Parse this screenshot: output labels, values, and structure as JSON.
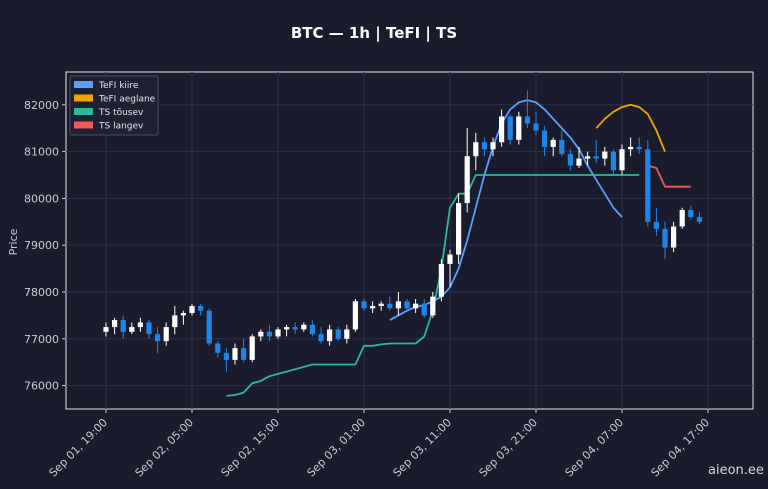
{
  "chart_data": {
    "type": "candlestick",
    "title": "BTC — 1h  |  TeFI  |  TS",
    "ylabel": "Price",
    "xlabel": "",
    "ylim": [
      75500,
      82700
    ],
    "yticks": [
      76000,
      77000,
      78000,
      79000,
      80000,
      81000,
      82000
    ],
    "xticks": [
      {
        "i": 0,
        "label": "Sep 01, 19:00"
      },
      {
        "i": 10,
        "label": "Sep 02, 05:00"
      },
      {
        "i": 20,
        "label": "Sep 02, 15:00"
      },
      {
        "i": 30,
        "label": "Sep 03, 01:00"
      },
      {
        "i": 40,
        "label": "Sep 03, 11:00"
      },
      {
        "i": 50,
        "label": "Sep 03, 21:00"
      },
      {
        "i": 60,
        "label": "Sep 04, 07:00"
      },
      {
        "i": 70,
        "label": "Sep 04, 17:00"
      }
    ],
    "grid": true,
    "legend_position": "top-left",
    "legend": [
      {
        "name": "TeFI kiire",
        "color": "#5aa0ff"
      },
      {
        "name": "TeFI aeglane",
        "color": "#f0a500"
      },
      {
        "name": "TS tõusev",
        "color": "#2eb89a"
      },
      {
        "name": "TS langev",
        "color": "#f05a5a"
      }
    ],
    "candles": [
      [
        77150,
        77350,
        77050,
        77250
      ],
      [
        77250,
        77450,
        77100,
        77400
      ],
      [
        77400,
        77500,
        77000,
        77150
      ],
      [
        77150,
        77350,
        77100,
        77250
      ],
      [
        77250,
        77450,
        77150,
        77350
      ],
      [
        77350,
        77400,
        77000,
        77100
      ],
      [
        77100,
        77250,
        76700,
        76950
      ],
      [
        76950,
        77350,
        76850,
        77250
      ],
      [
        77250,
        77700,
        77100,
        77500
      ],
      [
        77500,
        77600,
        77300,
        77550
      ],
      [
        77550,
        77750,
        77500,
        77700
      ],
      [
        77700,
        77750,
        77500,
        77600
      ],
      [
        77600,
        77650,
        76850,
        76900
      ],
      [
        76900,
        76950,
        76600,
        76700
      ],
      [
        76700,
        76800,
        76300,
        76550
      ],
      [
        76550,
        76900,
        76450,
        76800
      ],
      [
        76800,
        77000,
        76500,
        76550
      ],
      [
        76550,
        77100,
        76500,
        77050
      ],
      [
        77050,
        77200,
        76950,
        77150
      ],
      [
        77150,
        77300,
        76950,
        77050
      ],
      [
        77050,
        77250,
        77000,
        77200
      ],
      [
        77200,
        77300,
        77050,
        77250
      ],
      [
        77250,
        77350,
        77100,
        77200
      ],
      [
        77200,
        77350,
        77150,
        77300
      ],
      [
        77300,
        77400,
        77050,
        77100
      ],
      [
        77100,
        77250,
        76900,
        76950
      ],
      [
        76950,
        77300,
        76850,
        77200
      ],
      [
        77200,
        77250,
        76950,
        77000
      ],
      [
        77000,
        77300,
        76900,
        77200
      ],
      [
        77200,
        77850,
        77150,
        77800
      ],
      [
        77800,
        77850,
        77600,
        77650
      ],
      [
        77650,
        77800,
        77550,
        77700
      ],
      [
        77700,
        77800,
        77600,
        77750
      ],
      [
        77750,
        77900,
        77600,
        77650
      ],
      [
        77650,
        78000,
        77500,
        77800
      ],
      [
        77800,
        77850,
        77600,
        77650
      ],
      [
        77650,
        77850,
        77550,
        77750
      ],
      [
        77750,
        77850,
        77450,
        77500
      ],
      [
        77500,
        78000,
        77450,
        77900
      ],
      [
        77900,
        78700,
        77800,
        78600
      ],
      [
        78600,
        78900,
        78100,
        78800
      ],
      [
        78800,
        80100,
        78600,
        79900
      ],
      [
        79900,
        81500,
        79700,
        80900
      ],
      [
        80900,
        81400,
        80600,
        81200
      ],
      [
        81200,
        81300,
        80900,
        81050
      ],
      [
        81050,
        81300,
        80900,
        81200
      ],
      [
        81200,
        81900,
        81100,
        81750
      ],
      [
        81750,
        81800,
        81150,
        81250
      ],
      [
        81250,
        81850,
        81150,
        81750
      ],
      [
        81750,
        82300,
        81500,
        81600
      ],
      [
        81600,
        81850,
        81350,
        81450
      ],
      [
        81450,
        81550,
        80900,
        81100
      ],
      [
        81100,
        81300,
        80900,
        81250
      ],
      [
        81250,
        81450,
        80900,
        80950
      ],
      [
        80950,
        81050,
        80600,
        80700
      ],
      [
        80700,
        81100,
        80650,
        80850
      ],
      [
        80850,
        81000,
        80700,
        80900
      ],
      [
        80900,
        81250,
        80750,
        80850
      ],
      [
        80850,
        81100,
        80700,
        81000
      ],
      [
        81000,
        81050,
        80500,
        80600
      ],
      [
        80600,
        81150,
        80500,
        81050
      ],
      [
        81050,
        81300,
        80900,
        81100
      ],
      [
        81100,
        81300,
        80950,
        81050
      ],
      [
        81050,
        81250,
        79400,
        79500
      ],
      [
        79500,
        79800,
        79200,
        79350
      ],
      [
        79350,
        79500,
        78700,
        78950
      ],
      [
        78950,
        79500,
        78850,
        79400
      ],
      [
        79400,
        79800,
        79350,
        79750
      ],
      [
        79750,
        79850,
        79550,
        79600
      ],
      [
        79600,
        79700,
        79450,
        79500
      ]
    ],
    "series": [
      {
        "name": "TeFI kiire",
        "color": "#5aa0ff",
        "start": 33,
        "values": [
          77400,
          77500,
          77600,
          77680,
          77720,
          77800,
          77900,
          78100,
          78500,
          79100,
          79800,
          80500,
          81100,
          81600,
          81900,
          82050,
          82100,
          82050,
          81900,
          81700,
          81500,
          81300,
          81050,
          80700,
          80400,
          80100,
          79800,
          79600
        ]
      },
      {
        "name": "TeFI aeglane",
        "color": "#f0a500",
        "start": 57,
        "values": [
          81500,
          81700,
          81850,
          81950,
          82000,
          81950,
          81800,
          81450,
          81000
        ]
      },
      {
        "name": "TS tõusev",
        "color": "#2eb89a",
        "start": 14,
        "values": [
          75780,
          75800,
          75850,
          76050,
          76100,
          76200,
          76250,
          76300,
          76350,
          76400,
          76450,
          76450,
          76450,
          76450,
          76450,
          76450,
          76850,
          76850,
          76880,
          76900,
          76900,
          76900,
          76900,
          77050,
          77600,
          78500,
          79800,
          80100,
          80100,
          80500,
          80500,
          80500,
          80500,
          80500,
          80500,
          80500,
          80500,
          80500,
          80500,
          80500,
          80500,
          80500,
          80500,
          80500,
          80500,
          80500,
          80500,
          80500,
          80500
        ]
      },
      {
        "name": "TS langev",
        "color": "#f05a5a",
        "start": 63,
        "values": [
          80700,
          80650,
          80250,
          80250,
          80250,
          80250
        ]
      }
    ]
  },
  "watermark": "aieon.ee"
}
